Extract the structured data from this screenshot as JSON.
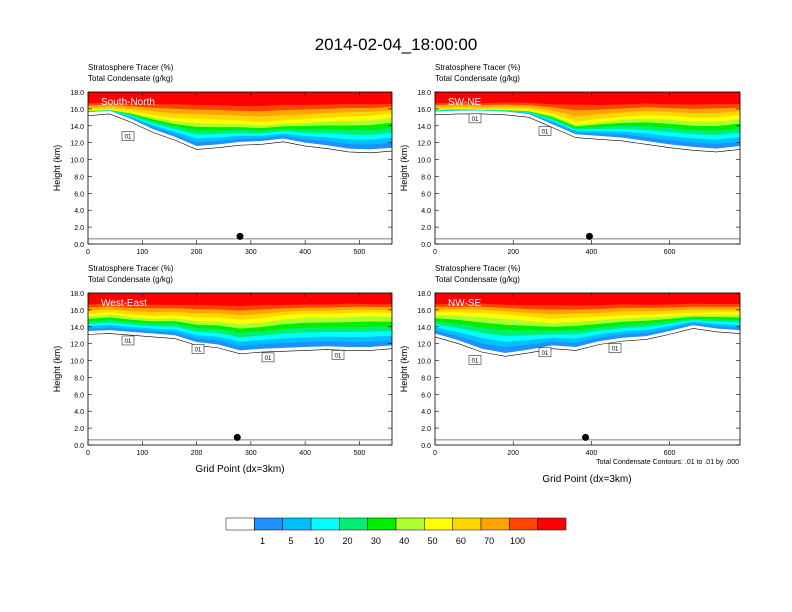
{
  "figure": {
    "title": "2014-02-04_18:00:00",
    "footnote": "Total Condensate Contours: .01 to .01 by .000",
    "colorbar": {
      "labels": [
        "1",
        "5",
        "10",
        "20",
        "30",
        "40",
        "50",
        "60",
        "70",
        "100"
      ],
      "colors": [
        "#ffffff",
        "#1e90ff",
        "#00bfff",
        "#00ffff",
        "#00ee76",
        "#00ee00",
        "#adff2f",
        "#ffff00",
        "#ffd700",
        "#ffa500",
        "#ff4500",
        "#ff0000"
      ]
    }
  },
  "chart_data": [
    {
      "type": "heatmap",
      "title": "South-North",
      "left_string_1": "Stratosphere Tracer   (%)",
      "left_string_2": "Total Condensate   (g/kg)",
      "ylabel": "Height (km)",
      "xlabel": "",
      "xlim": [
        0,
        560
      ],
      "ylim": [
        0,
        18
      ],
      "xticks": [
        "0",
        "100",
        "200",
        "300",
        "400",
        "500"
      ],
      "yticks": [
        "0.0",
        "2.0",
        "4.0",
        "6.0",
        "8.0",
        "10.0",
        "12.0",
        "14.0",
        "16.0",
        "18.0"
      ],
      "contour_labels": [
        "01"
      ],
      "marker_x": 280,
      "tracer_profile": {
        "x": [
          0,
          40,
          80,
          120,
          160,
          200,
          240,
          280,
          320,
          360,
          400,
          440,
          480,
          520,
          560
        ],
        "top_100": [
          16.9,
          17.0,
          16.9,
          17.0,
          17.1,
          17.0,
          17.0,
          16.9,
          17.0,
          17.1,
          17.0,
          17.0,
          17.1,
          17.0,
          17.0
        ],
        "top_50": [
          15.8,
          15.9,
          15.6,
          15.1,
          14.7,
          14.6,
          14.5,
          14.4,
          14.2,
          14.4,
          14.6,
          14.8,
          14.9,
          15.0,
          15.3
        ],
        "bottom_1": [
          15.6,
          15.8,
          14.8,
          13.6,
          12.7,
          11.6,
          11.8,
          12.1,
          12.2,
          12.5,
          12.0,
          11.7,
          11.3,
          11.2,
          11.4
        ]
      }
    },
    {
      "type": "heatmap",
      "title": "SW-NE",
      "left_string_1": "Stratosphere Tracer   (%)",
      "left_string_2": "Total Condensate   (g/kg)",
      "ylabel": "Height (km)",
      "xlabel": "",
      "xlim": [
        0,
        780
      ],
      "ylim": [
        0,
        18
      ],
      "xticks": [
        "0",
        "200",
        "400",
        "600"
      ],
      "yticks": [
        "0.0",
        "2.0",
        "4.0",
        "6.0",
        "8.0",
        "10.0",
        "12.0",
        "14.0",
        "16.0",
        "18.0"
      ],
      "contour_labels": [
        "01",
        "01"
      ],
      "marker_x": 395,
      "tracer_profile": {
        "x": [
          0,
          60,
          120,
          180,
          240,
          300,
          360,
          420,
          480,
          540,
          600,
          660,
          720,
          780
        ],
        "top_100": [
          16.9,
          17.0,
          16.9,
          17.0,
          17.0,
          16.9,
          17.2,
          17.0,
          17.0,
          17.1,
          17.0,
          17.0,
          17.1,
          17.0
        ],
        "top_50": [
          15.9,
          16.0,
          15.9,
          15.9,
          15.8,
          15.3,
          14.2,
          14.6,
          14.9,
          15.1,
          15.0,
          14.8,
          14.8,
          15.1
        ],
        "bottom_1": [
          15.7,
          15.8,
          15.8,
          15.7,
          15.4,
          14.2,
          13.0,
          12.8,
          12.6,
          12.2,
          11.8,
          11.5,
          11.3,
          11.6
        ]
      }
    },
    {
      "type": "heatmap",
      "title": "West-East",
      "left_string_1": "Stratosphere Tracer   (%)",
      "left_string_2": "Total Condensate   (g/kg)",
      "ylabel": "Height (km)",
      "xlabel": "Grid Point (dx=3km)",
      "xlim": [
        0,
        560
      ],
      "ylim": [
        0,
        18
      ],
      "xticks": [
        "0",
        "100",
        "200",
        "300",
        "400",
        "500"
      ],
      "yticks": [
        "0.0",
        "2.0",
        "4.0",
        "6.0",
        "8.0",
        "10.0",
        "12.0",
        "14.0",
        "16.0",
        "18.0"
      ],
      "contour_labels": [
        "01",
        "01",
        "01",
        "01"
      ],
      "marker_x": 275,
      "tracer_profile": {
        "x": [
          0,
          40,
          80,
          120,
          160,
          200,
          240,
          280,
          320,
          360,
          400,
          440,
          480,
          520,
          560
        ],
        "top_100": [
          17.0,
          17.1,
          17.0,
          17.1,
          17.0,
          17.1,
          17.0,
          17.0,
          17.1,
          17.0,
          17.0,
          17.0,
          17.1,
          17.0,
          17.0
        ],
        "top_50": [
          15.4,
          15.6,
          15.3,
          15.1,
          15.2,
          14.9,
          14.9,
          14.6,
          14.8,
          15.2,
          15.4,
          15.4,
          15.5,
          15.6,
          15.5
        ],
        "bottom_1": [
          13.5,
          13.6,
          13.4,
          13.2,
          13.0,
          12.2,
          11.9,
          11.2,
          11.4,
          11.5,
          11.6,
          11.7,
          11.6,
          11.6,
          11.8
        ]
      }
    },
    {
      "type": "heatmap",
      "title": "NW-SE",
      "left_string_1": "Stratosphere Tracer   (%)",
      "left_string_2": "Total Condensate   (g/kg)",
      "ylabel": "Height (km)",
      "xlabel": "Grid Point (dx=3km)",
      "xlim": [
        0,
        780
      ],
      "ylim": [
        0,
        18
      ],
      "xticks": [
        "0",
        "200",
        "400",
        "600"
      ],
      "yticks": [
        "0.0",
        "2.0",
        "4.0",
        "6.0",
        "8.0",
        "10.0",
        "12.0",
        "14.0",
        "16.0",
        "18.0"
      ],
      "contour_labels": [
        "01",
        "01",
        "01"
      ],
      "marker_x": 385,
      "tracer_profile": {
        "x": [
          0,
          60,
          120,
          180,
          240,
          300,
          360,
          420,
          480,
          540,
          600,
          660,
          720,
          780
        ],
        "top_100": [
          17.0,
          17.0,
          17.1,
          17.0,
          17.0,
          17.1,
          17.0,
          17.0,
          17.1,
          17.0,
          17.0,
          17.1,
          17.0,
          17.0
        ],
        "top_50": [
          15.6,
          15.6,
          15.5,
          15.3,
          15.0,
          14.7,
          14.9,
          15.0,
          15.2,
          15.3,
          15.4,
          15.5,
          15.6,
          15.6
        ],
        "bottom_1": [
          13.2,
          12.4,
          11.4,
          10.9,
          11.3,
          11.8,
          11.6,
          12.3,
          12.7,
          12.9,
          13.5,
          14.2,
          13.8,
          13.6
        ]
      }
    }
  ]
}
